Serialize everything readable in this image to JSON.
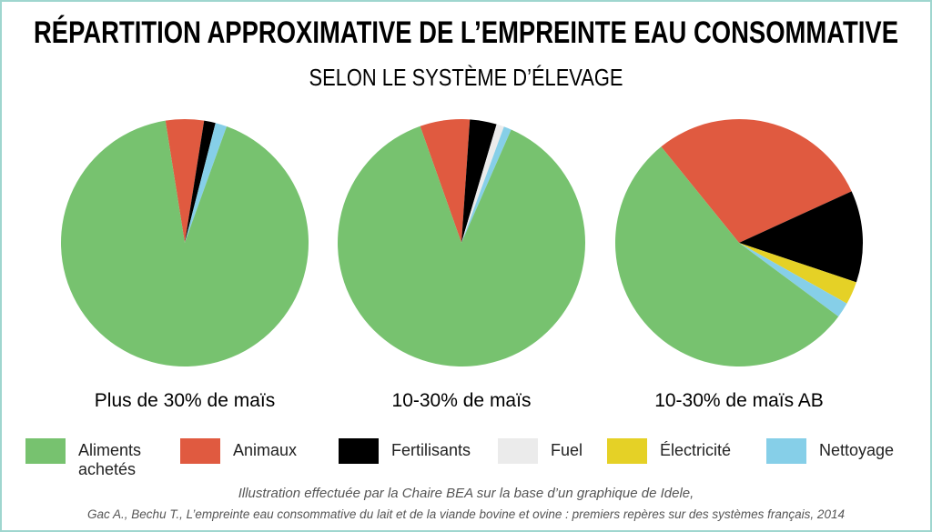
{
  "title": "RÉPARTITION APPROXIMATIVE DE L’EMPREINTE EAU CONSOMMATIVE",
  "subtitle": "SELON LE SYSTÈME D’ÉLEVAGE",
  "legend": [
    {
      "name": "Aliments achetés",
      "color": "#77c26f"
    },
    {
      "name": "Animaux",
      "color": "#e05a40"
    },
    {
      "name": "Fertilisants",
      "color": "#000000"
    },
    {
      "name": "Fuel",
      "color": "#ebebeb"
    },
    {
      "name": "Électricité",
      "color": "#e5d126"
    },
    {
      "name": "Nettoyage",
      "color": "#86cfe8"
    }
  ],
  "source": [
    "Illustration effectuée par la Chaire BEA sur la base d’un graphique de Idele,",
    "Gac A., Bechu T., L’empreinte eau consommative du lait et de la viande bovine et ovine : premiers repères sur des systèmes français, 2014"
  ],
  "chart_data": [
    {
      "type": "pie",
      "title": "Plus de 30% de maïs",
      "values": [
        92,
        5,
        1.5,
        0,
        0,
        1.5
      ]
    },
    {
      "type": "pie",
      "title": "10-30% de maïs",
      "values": [
        88,
        6.5,
        3.5,
        1,
        0,
        1
      ]
    },
    {
      "type": "pie",
      "title": "10-30% de maïs AB",
      "values": [
        54,
        29,
        12,
        0,
        3,
        2
      ]
    }
  ]
}
